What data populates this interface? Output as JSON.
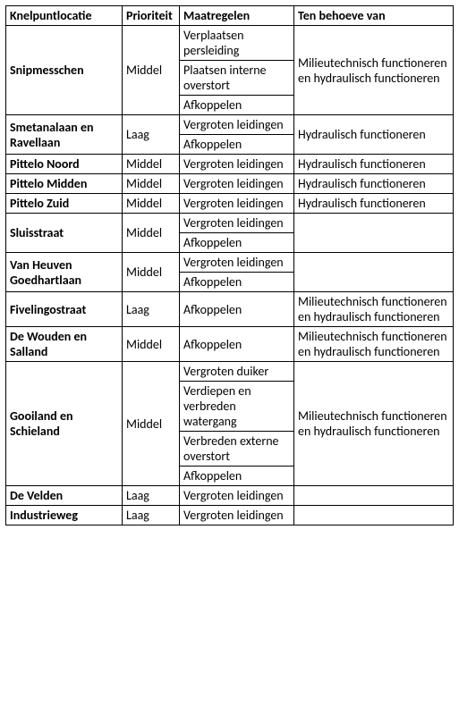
{
  "columns": [
    "Knelpuntlocatie",
    "Prioriteit",
    "Maatregelen",
    "Ten behoeve van"
  ],
  "col_widths": [
    "130px",
    "64px",
    "128px",
    "178px"
  ],
  "rows": [
    {
      "loc": "Snipmesschen",
      "prio": "Middel",
      "maat": [
        "Verplaatsen persleiding",
        "Plaatsen interne overstort",
        "Afkoppelen"
      ],
      "tbv": "Milieutechnisch functioneren en hydraulisch functioneren"
    },
    {
      "loc": "Smetanalaan en Ravellaan",
      "prio": "Laag",
      "maat": [
        "Vergroten leidingen",
        "Afkoppelen"
      ],
      "tbv": "Hydraulisch functioneren"
    },
    {
      "loc": "Pittelo Noord",
      "prio": "Middel",
      "maat": [
        "Vergroten leidingen"
      ],
      "tbv": "Hydraulisch functioneren"
    },
    {
      "loc": "Pittelo Midden",
      "prio": "Middel",
      "maat": [
        "Vergroten leidingen"
      ],
      "tbv": "Hydraulisch functioneren"
    },
    {
      "loc": "Pittelo Zuid",
      "prio": "Middel",
      "maat": [
        "Vergroten leidingen"
      ],
      "tbv": "Hydraulisch functioneren"
    },
    {
      "loc": "Sluisstraat",
      "prio": "Middel",
      "maat": [
        "Vergroten leidingen",
        "Afkoppelen"
      ],
      "tbv": ""
    },
    {
      "loc": "Van Heuven Goedhartlaan",
      "prio": "Middel",
      "maat": [
        "Vergroten leidingen",
        "Afkoppelen"
      ],
      "tbv": ""
    },
    {
      "loc": "Fivelingostraat",
      "prio": "Laag",
      "maat": [
        "Afkoppelen"
      ],
      "tbv": "Milieutechnisch functioneren en hydraulisch functioneren"
    },
    {
      "loc": "De Wouden en Salland",
      "prio": "Middel",
      "maat": [
        "Afkoppelen"
      ],
      "tbv": "Milieutechnisch functioneren en hydraulisch functioneren"
    },
    {
      "loc": "Gooiland en Schieland",
      "prio": "Middel",
      "maat": [
        "Vergroten duiker",
        "Verdiepen en verbreden watergang",
        "Verbreden externe overstort",
        "Afkoppelen"
      ],
      "tbv": "Milieutechnisch functioneren en hydraulisch functioneren"
    },
    {
      "loc": "De Velden",
      "prio": "Laag",
      "maat": [
        "Vergroten leidingen"
      ],
      "tbv": ""
    },
    {
      "loc": "Industrieweg",
      "prio": "Laag",
      "maat": [
        "Vergroten leidingen"
      ],
      "tbv": ""
    }
  ]
}
